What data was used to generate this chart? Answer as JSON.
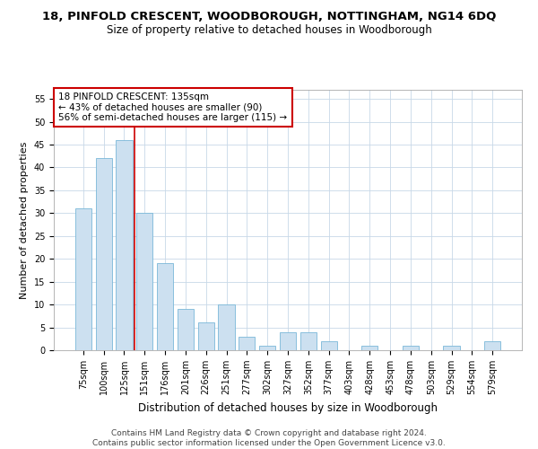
{
  "title": "18, PINFOLD CRESCENT, WOODBOROUGH, NOTTINGHAM, NG14 6DQ",
  "subtitle": "Size of property relative to detached houses in Woodborough",
  "xlabel": "Distribution of detached houses by size in Woodborough",
  "ylabel": "Number of detached properties",
  "categories": [
    "75sqm",
    "100sqm",
    "125sqm",
    "151sqm",
    "176sqm",
    "201sqm",
    "226sqm",
    "251sqm",
    "277sqm",
    "302sqm",
    "327sqm",
    "352sqm",
    "377sqm",
    "403sqm",
    "428sqm",
    "453sqm",
    "478sqm",
    "503sqm",
    "529sqm",
    "554sqm",
    "579sqm"
  ],
  "values": [
    31,
    42,
    46,
    30,
    19,
    9,
    6,
    10,
    3,
    1,
    4,
    4,
    2,
    0,
    1,
    0,
    1,
    0,
    1,
    0,
    2
  ],
  "bar_color": "#cce0f0",
  "bar_edge_color": "#7ab8d8",
  "vline_x": 2.5,
  "vline_color": "#cc0000",
  "annotation_text": "18 PINFOLD CRESCENT: 135sqm\n← 43% of detached houses are smaller (90)\n56% of semi-detached houses are larger (115) →",
  "annotation_box_color": "white",
  "annotation_box_edge": "#cc0000",
  "ylim": [
    0,
    57
  ],
  "yticks": [
    0,
    5,
    10,
    15,
    20,
    25,
    30,
    35,
    40,
    45,
    50,
    55
  ],
  "footer": "Contains HM Land Registry data © Crown copyright and database right 2024.\nContains public sector information licensed under the Open Government Licence v3.0.",
  "title_fontsize": 9.5,
  "subtitle_fontsize": 8.5,
  "xlabel_fontsize": 8.5,
  "ylabel_fontsize": 8,
  "tick_fontsize": 7,
  "annotation_fontsize": 7.5,
  "footer_fontsize": 6.5
}
